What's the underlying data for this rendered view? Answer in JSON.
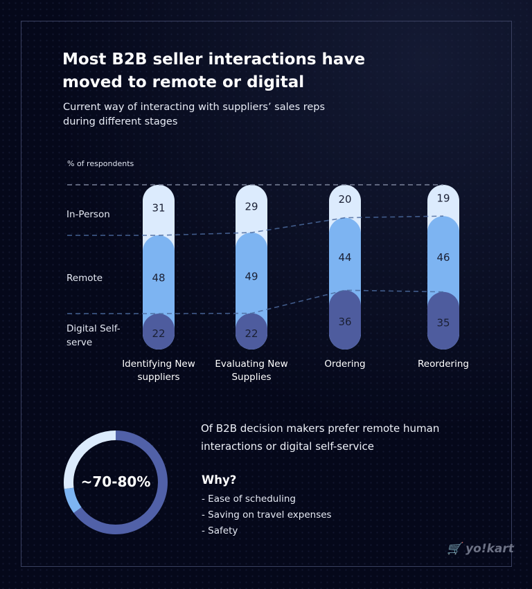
{
  "title": "Most B2B seller interactions have moved to remote or digital",
  "subtitle": "Current way of interacting with suppliers’ sales reps during different stages",
  "chart_data": {
    "type": "bar",
    "stacked": true,
    "ylabel": "% of respondents",
    "categories": [
      "Identifying New suppliers",
      "Evaluating New Supplies",
      "Ordering",
      "Reordering"
    ],
    "series": [
      {
        "name": "In-Person",
        "values": [
          31,
          29,
          20,
          19
        ],
        "color": "#dcebfd"
      },
      {
        "name": "Remote",
        "values": [
          48,
          49,
          44,
          46
        ],
        "color": "#7db4f2"
      },
      {
        "name": "Digital Self- serve",
        "values": [
          22,
          22,
          36,
          35
        ],
        "color": "#4e5c9e"
      }
    ]
  },
  "donut": {
    "label": "~70-80%",
    "segments_percent": [
      65,
      8,
      27
    ],
    "colors": [
      "#5161a8",
      "#7db4f2",
      "#dcebfd"
    ]
  },
  "summary": {
    "line1": "Of B2B decision makers prefer remote human",
    "line2": "interactions or digital self-service"
  },
  "why": {
    "heading": "Why?",
    "reasons": [
      "- Ease of scheduling",
      "- Saving on travel expenses",
      "- Safety"
    ]
  },
  "logo": "yo!kart"
}
